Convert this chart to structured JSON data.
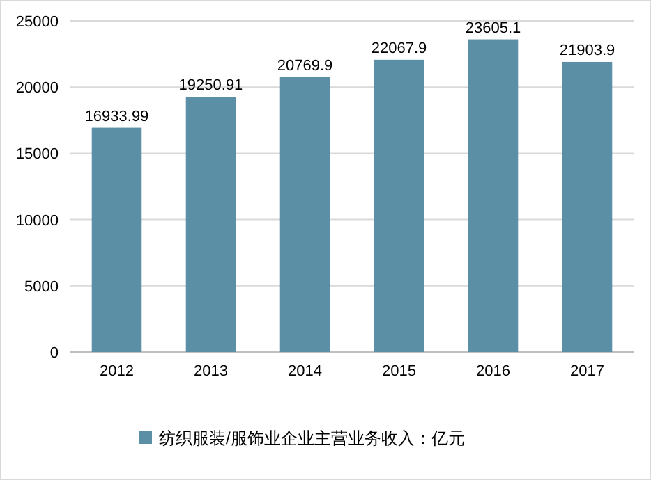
{
  "chart_data": {
    "type": "bar",
    "categories": [
      "2012",
      "2013",
      "2014",
      "2015",
      "2016",
      "2017"
    ],
    "series": [
      {
        "name": "纺织服装/服饰业企业主营业务收入：亿元",
        "color": "#5b8fa5",
        "values": [
          16933.99,
          19250.91,
          20769.9,
          22067.9,
          23605.1,
          21903.9
        ]
      }
    ],
    "ylim": [
      0,
      25000
    ],
    "yticks": [
      0,
      5000,
      10000,
      15000,
      20000,
      25000
    ],
    "grid": "y",
    "data_labels": true,
    "legend": "bottom"
  }
}
